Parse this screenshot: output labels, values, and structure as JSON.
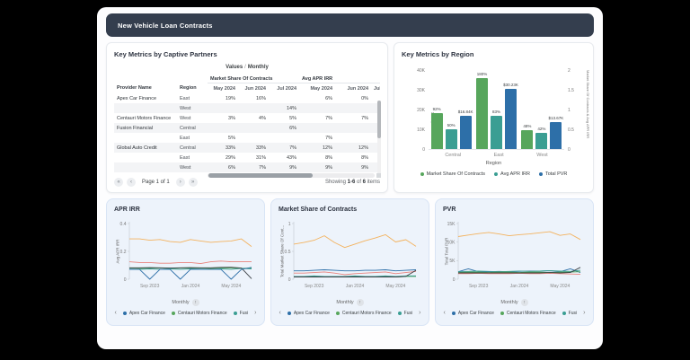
{
  "colors": {
    "green": "#57a65c",
    "teal": "#3a9e93",
    "blue": "#2d6fa8",
    "orange": "#f3b25e",
    "red": "#e8837d",
    "black": "#3a3f44",
    "header_bg": "#343e4e",
    "card_bg": "#edf3fb"
  },
  "icons": {
    "pag_first": "«",
    "pag_prev": "‹",
    "pag_next": "›",
    "pag_last": "»",
    "chevron_left": "‹",
    "chevron_right": "›",
    "sort_up": "↑"
  },
  "header": {
    "title": "New Vehicle Loan Contracts"
  },
  "partners_panel": {
    "title": "Key Metrics by Captive Partners",
    "values_label": "Values",
    "sep": "/",
    "frequency_label": "Monthly",
    "table": {
      "col_provider": "Provider Name",
      "col_region": "Region",
      "group1": "Market Share Of Contracts",
      "group2": "Avg APR IRR",
      "months1": [
        "May 2024",
        "Jun 2024",
        "Jul 2024"
      ],
      "months2": [
        "May 2024",
        "Jun 2024",
        "Jul 2024"
      ],
      "rows": [
        {
          "provider": "Apex Car Finance",
          "region": "East",
          "ms": [
            "19%",
            "16%",
            ""
          ],
          "apr": [
            "6%",
            "0%"
          ]
        },
        {
          "provider": "",
          "region": "West",
          "ms": [
            "",
            "",
            "14%"
          ],
          "apr": [
            "",
            ""
          ]
        },
        {
          "provider": "Centauri Motors Finance",
          "region": "West",
          "ms": [
            "3%",
            "4%",
            "5%"
          ],
          "apr": [
            "7%",
            "7%"
          ]
        },
        {
          "provider": "Fusion Financial",
          "region": "Central",
          "ms": [
            "",
            "",
            "6%"
          ],
          "apr": [
            "",
            ""
          ]
        },
        {
          "provider": "",
          "region": "East",
          "ms": [
            "5%",
            "",
            ""
          ],
          "apr": [
            "7%",
            ""
          ]
        },
        {
          "provider": "Global Auto Credit",
          "region": "Central",
          "ms": [
            "33%",
            "33%",
            "7%"
          ],
          "apr": [
            "12%",
            "12%"
          ]
        },
        {
          "provider": "",
          "region": "East",
          "ms": [
            "29%",
            "31%",
            "43%"
          ],
          "apr": [
            "8%",
            "8%"
          ]
        },
        {
          "provider": "",
          "region": "West",
          "ms": [
            "6%",
            "7%",
            "9%"
          ],
          "apr": [
            "9%",
            "9%"
          ]
        }
      ]
    },
    "pagination": {
      "page_label": "Page 1 of 1",
      "showing_prefix": "Showing ",
      "showing_range": "1-6",
      "showing_mid": " of ",
      "showing_total": "6",
      "showing_suffix": " items"
    }
  },
  "chart_data": [
    {
      "id": "region-bar",
      "type": "bar",
      "title": "Key Metrics by Region",
      "categories": [
        "Central",
        "East",
        "West"
      ],
      "series": [
        {
          "name": "Market Share Of Contracts",
          "axis": "right",
          "color_key": "green",
          "values": [
            0.92,
            1.8,
            0.48
          ],
          "labels": [
            "92%",
            "180%",
            "48%"
          ]
        },
        {
          "name": "Avg APR IRR",
          "axis": "right",
          "color_key": "teal",
          "values": [
            0.5,
            0.83,
            0.42
          ],
          "labels": [
            "50%",
            "83%",
            "42%"
          ]
        },
        {
          "name": "Total PVR",
          "axis": "left",
          "color_key": "blue",
          "values": [
            16840,
            30230,
            13670
          ],
          "labels": [
            "$16.84K",
            "$30.23K",
            "$13.67K"
          ]
        }
      ],
      "left_axis": {
        "label": "Total PVR",
        "ticks": [
          "0",
          "10K",
          "20K",
          "30K",
          "40K"
        ],
        "max": 40000
      },
      "right_axis": {
        "label": "Market Share Of Contracts & Avg APR IRR",
        "ticks": [
          "0",
          "0.5",
          "1",
          "1.5",
          "2"
        ],
        "max": 2
      },
      "xlabel": "Region",
      "legend": [
        {
          "label": "Market Share Of Contracts",
          "color_key": "green"
        },
        {
          "label": "Avg APR IRR",
          "color_key": "teal"
        },
        {
          "label": "Total PVR",
          "color_key": "blue"
        }
      ]
    },
    {
      "id": "apr-irr",
      "type": "line",
      "title": "APR IRR",
      "ylabel": "Avg APR IRR",
      "ymax": 0.4,
      "yticks": [
        {
          "v": 0,
          "t": "0"
        },
        {
          "v": 0.2,
          "t": "0.2"
        },
        {
          "v": 0.4,
          "t": "0.4"
        }
      ],
      "xticks": [
        {
          "i": 2,
          "t": "Sep 2023"
        },
        {
          "i": 6,
          "t": "Jan 2024"
        },
        {
          "i": 10,
          "t": "May 2024"
        }
      ],
      "xlabel": "Monthly",
      "series": [
        {
          "color_key": "orange",
          "values": [
            0.29,
            0.29,
            0.28,
            0.285,
            0.27,
            0.265,
            0.285,
            0.275,
            0.265,
            0.27,
            0.275,
            0.29,
            0.235
          ]
        },
        {
          "color_key": "red",
          "values": [
            0.125,
            0.12,
            0.12,
            0.115,
            0.115,
            0.12,
            0.12,
            0.112,
            0.125,
            0.13,
            0.125,
            0.125,
            0.125
          ]
        },
        {
          "color_key": "green",
          "values": [
            0.08,
            0.078,
            0.08,
            0.081,
            0.078,
            0.08,
            0.08,
            0.08,
            0.077,
            0.08,
            0.08,
            0.078,
            0.08
          ]
        },
        {
          "color_key": "teal",
          "values": [
            0.073,
            0.07,
            0.074,
            0.07,
            0.074,
            0.07,
            0.074,
            0.073,
            0.07,
            0.074,
            0.07,
            0.078,
            0.074
          ]
        },
        {
          "color_key": "black",
          "values": [
            0.082,
            0.082,
            0.083,
            0.082,
            0.08,
            0.082,
            0.083,
            0.082,
            0.082,
            0.085,
            0.086,
            0.08,
            0.004
          ]
        },
        {
          "color_key": "blue",
          "values": [
            0.07,
            0.07,
            0,
            0.07,
            0.07,
            0,
            0.07,
            0.07,
            0.07,
            0.07,
            0,
            0.07,
            0.085
          ]
        }
      ],
      "legend": [
        {
          "label": "Apex Car Finance",
          "color_key": "blue"
        },
        {
          "label": "Centauri Motors Finance",
          "color_key": "green"
        },
        {
          "label": "Fusi",
          "color_key": "teal"
        }
      ]
    },
    {
      "id": "market-share",
      "type": "line",
      "title": "Market Share of Contracts",
      "ylabel": "Total Market Share Of Cont...",
      "ymax": 1,
      "yticks": [
        {
          "v": 0,
          "t": "0"
        },
        {
          "v": 0.5,
          "t": "0.5"
        },
        {
          "v": 1,
          "t": "1"
        }
      ],
      "xticks": [
        {
          "i": 2,
          "t": "Sep 2023"
        },
        {
          "i": 6,
          "t": "Jan 2024"
        },
        {
          "i": 10,
          "t": "May 2024"
        }
      ],
      "xlabel": "Monthly",
      "series": [
        {
          "color_key": "orange",
          "values": [
            0.63,
            0.66,
            0.7,
            0.78,
            0.66,
            0.57,
            0.63,
            0.69,
            0.74,
            0.8,
            0.67,
            0.71,
            0.59
          ]
        },
        {
          "color_key": "blue",
          "values": [
            0.15,
            0.15,
            0.16,
            0.17,
            0.16,
            0.15,
            0.15,
            0.16,
            0.16,
            0.17,
            0.15,
            0.16,
            0.17
          ]
        },
        {
          "color_key": "red",
          "values": [
            0.11,
            0.11,
            0.12,
            0.13,
            0.11,
            0.08,
            0.1,
            0.11,
            0.12,
            0.13,
            0.1,
            0.12,
            0.14
          ]
        },
        {
          "color_key": "green",
          "values": [
            0.04,
            0.04,
            0.05,
            0.04,
            0.04,
            0.04,
            0.05,
            0.04,
            0.04,
            0.05,
            0.04,
            0.05,
            0.05
          ]
        },
        {
          "color_key": "teal",
          "values": [
            0.05,
            0.05,
            0.06,
            0.05,
            0.05,
            0.05,
            0.06,
            0.05,
            0.05,
            0.06,
            0.05,
            0.06,
            0.06
          ]
        },
        {
          "color_key": "black",
          "values": [
            0.04,
            0.04,
            0.04,
            0.04,
            0.04,
            0.04,
            0.04,
            0.04,
            0.04,
            0.04,
            0.04,
            0.05,
            0.16
          ]
        }
      ],
      "legend": [
        {
          "label": "Apex Car Finance",
          "color_key": "blue"
        },
        {
          "label": "Centauri Motors Finance",
          "color_key": "green"
        },
        {
          "label": "Fusi",
          "color_key": "teal"
        }
      ]
    },
    {
      "id": "pvr",
      "type": "line",
      "title": "PVR",
      "ylabel": "Total Total PVR",
      "ymax": 15000,
      "yticks": [
        {
          "v": 0,
          "t": "0"
        },
        {
          "v": 5000,
          "t": "5K"
        },
        {
          "v": 10000,
          "t": "10K"
        },
        {
          "v": 15000,
          "t": "15K"
        }
      ],
      "xticks": [
        {
          "i": 2,
          "t": "Sep 2023"
        },
        {
          "i": 6,
          "t": "Jan 2024"
        },
        {
          "i": 10,
          "t": "May 2024"
        }
      ],
      "xlabel": "Monthly",
      "series": [
        {
          "color_key": "orange",
          "values": [
            11500,
            11900,
            12300,
            12600,
            12200,
            11700,
            12000,
            12200,
            12500,
            12800,
            11800,
            12200,
            10700
          ]
        },
        {
          "color_key": "blue",
          "values": [
            2000,
            2800,
            2000,
            2000,
            2100,
            2000,
            2100,
            2200,
            2200,
            2300,
            2000,
            2800,
            1800
          ]
        },
        {
          "color_key": "teal",
          "values": [
            2000,
            2100,
            2200,
            2100,
            2000,
            2100,
            2200,
            2100,
            2200,
            2300,
            2200,
            2100,
            2400
          ]
        },
        {
          "color_key": "green",
          "values": [
            1800,
            1900,
            1900,
            1800,
            1900,
            1900,
            1800,
            1900,
            1900,
            1800,
            1900,
            1900,
            2000
          ]
        },
        {
          "color_key": "red",
          "values": [
            1500,
            1500,
            1600,
            1500,
            1500,
            1500,
            1600,
            1500,
            1500,
            1600,
            1500,
            1400,
            1300
          ]
        },
        {
          "color_key": "black",
          "values": [
            1700,
            1700,
            1700,
            1700,
            1700,
            1700,
            1700,
            1700,
            1700,
            1800,
            1700,
            1800,
            3200
          ]
        }
      ],
      "legend": [
        {
          "label": "Apex Car Finance",
          "color_key": "blue"
        },
        {
          "label": "Centauri Motors Finance",
          "color_key": "green"
        },
        {
          "label": "Fusi",
          "color_key": "teal"
        }
      ]
    }
  ]
}
